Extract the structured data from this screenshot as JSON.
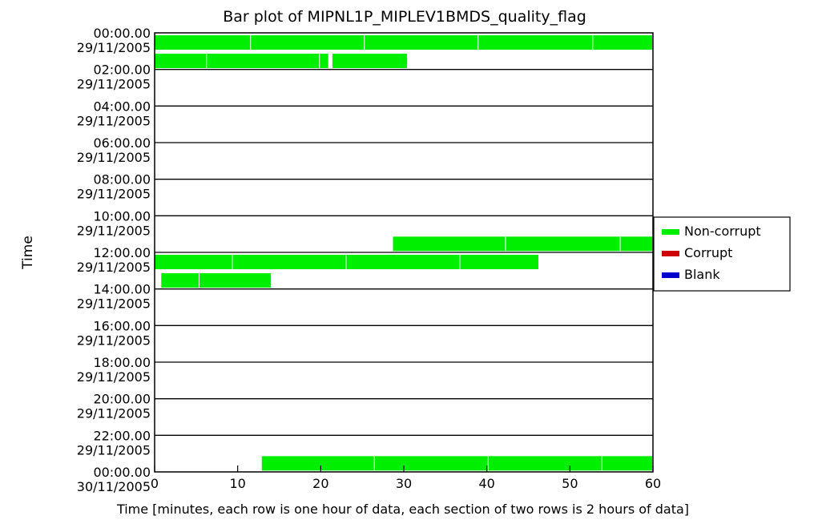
{
  "chart_data": {
    "type": "bar",
    "title": "Bar plot of MIPNL1P_MIPLEV1BMDS_quality_flag",
    "xlabel": "Time [minutes, each row is one hour of data, each section of two rows is 2 hours of data]",
    "ylabel": "Time",
    "xlim": [
      0,
      60
    ],
    "x_ticks": [
      0,
      10,
      20,
      30,
      40,
      50,
      60
    ],
    "y_sections": [
      {
        "time": "00:00.00",
        "date": "29/11/2005"
      },
      {
        "time": "02:00.00",
        "date": "29/11/2005"
      },
      {
        "time": "04:00.00",
        "date": "29/11/2005"
      },
      {
        "time": "06:00.00",
        "date": "29/11/2005"
      },
      {
        "time": "08:00.00",
        "date": "29/11/2005"
      },
      {
        "time": "10:00.00",
        "date": "29/11/2005"
      },
      {
        "time": "12:00.00",
        "date": "29/11/2005"
      },
      {
        "time": "14:00.00",
        "date": "29/11/2005"
      },
      {
        "time": "16:00.00",
        "date": "29/11/2005"
      },
      {
        "time": "18:00.00",
        "date": "29/11/2005"
      },
      {
        "time": "20:00.00",
        "date": "29/11/2005"
      },
      {
        "time": "22:00.00",
        "date": "29/11/2005"
      },
      {
        "time": "00:00.00",
        "date": "30/11/2005"
      }
    ],
    "legend": {
      "placement": "right",
      "entries": [
        {
          "label": "Non-corrupt",
          "color": "#00ee00"
        },
        {
          "label": "Corrupt",
          "color": "#cc0000"
        },
        {
          "label": "Blank",
          "color": "#0000cc"
        }
      ]
    },
    "series": [
      {
        "name": "Non-corrupt",
        "color": "#00ee00",
        "segments": [
          {
            "section": 0,
            "row": 0,
            "start": 0,
            "end": 11.6
          },
          {
            "section": 0,
            "row": 0,
            "start": 11.6,
            "end": 25.3
          },
          {
            "section": 0,
            "row": 0,
            "start": 25.3,
            "end": 39
          },
          {
            "section": 0,
            "row": 0,
            "start": 39,
            "end": 52.8
          },
          {
            "section": 0,
            "row": 0,
            "start": 52.8,
            "end": 60
          },
          {
            "section": 0,
            "row": 1,
            "start": 0,
            "end": 6.3
          },
          {
            "section": 0,
            "row": 1,
            "start": 6.3,
            "end": 19.9
          },
          {
            "section": 0,
            "row": 1,
            "start": 19.9,
            "end": 21
          },
          {
            "section": 0,
            "row": 1,
            "start": 21.4,
            "end": 30.5
          },
          {
            "section": 5,
            "row": 1,
            "start": 28.7,
            "end": 42.3
          },
          {
            "section": 5,
            "row": 1,
            "start": 42.3,
            "end": 56.1
          },
          {
            "section": 5,
            "row": 1,
            "start": 56.1,
            "end": 60
          },
          {
            "section": 6,
            "row": 0,
            "start": 0,
            "end": 9.4
          },
          {
            "section": 6,
            "row": 0,
            "start": 9.4,
            "end": 23.1
          },
          {
            "section": 6,
            "row": 0,
            "start": 23.1,
            "end": 36.8
          },
          {
            "section": 6,
            "row": 0,
            "start": 36.8,
            "end": 46.3
          },
          {
            "section": 6,
            "row": 1,
            "start": 0.8,
            "end": 5.4
          },
          {
            "section": 6,
            "row": 1,
            "start": 5.4,
            "end": 14.1
          },
          {
            "section": 11,
            "row": 1,
            "start": 12.9,
            "end": 26.5
          },
          {
            "section": 11,
            "row": 1,
            "start": 26.5,
            "end": 40.2
          },
          {
            "section": 11,
            "row": 1,
            "start": 40.2,
            "end": 53.9
          },
          {
            "section": 11,
            "row": 1,
            "start": 53.9,
            "end": 60
          }
        ]
      }
    ]
  }
}
